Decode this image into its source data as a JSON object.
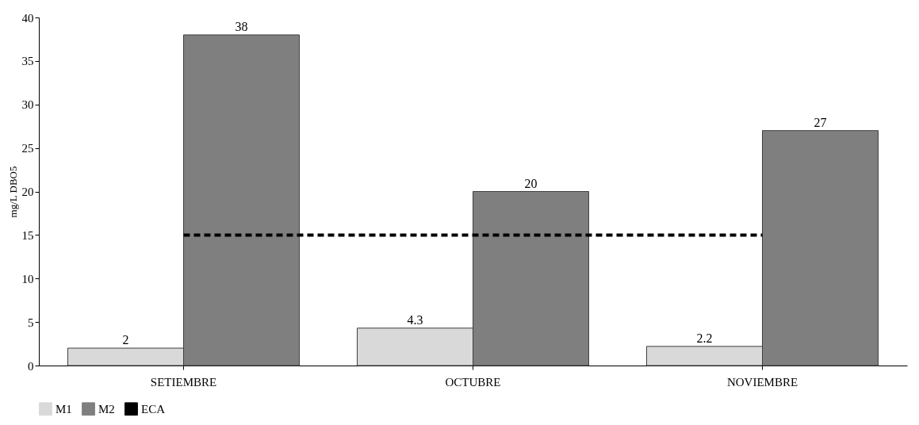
{
  "chart_data": {
    "type": "bar",
    "ylabel": "mg/L  DBO5",
    "categories": [
      "SETIEMBRE",
      "OCTUBRE",
      "NOVIEMBRE"
    ],
    "series": [
      {
        "name": "M1",
        "color": "#d9d9d9",
        "values": [
          2,
          4.3,
          2.2
        ],
        "value_labels": [
          "2",
          "4.3",
          "2.2"
        ]
      },
      {
        "name": "M2",
        "color": "#7f7f7f",
        "values": [
          38,
          20,
          27
        ],
        "value_labels": [
          "38",
          "20",
          "27"
        ]
      },
      {
        "name": "ECA",
        "type": "line",
        "color": "#000000",
        "line_style": "dashed",
        "values": [
          15,
          15,
          15
        ]
      }
    ],
    "ylim": [
      0,
      40
    ],
    "yticks": [
      0,
      5,
      10,
      15,
      20,
      25,
      30,
      35,
      40
    ],
    "grid": false,
    "legend": "bottom"
  }
}
